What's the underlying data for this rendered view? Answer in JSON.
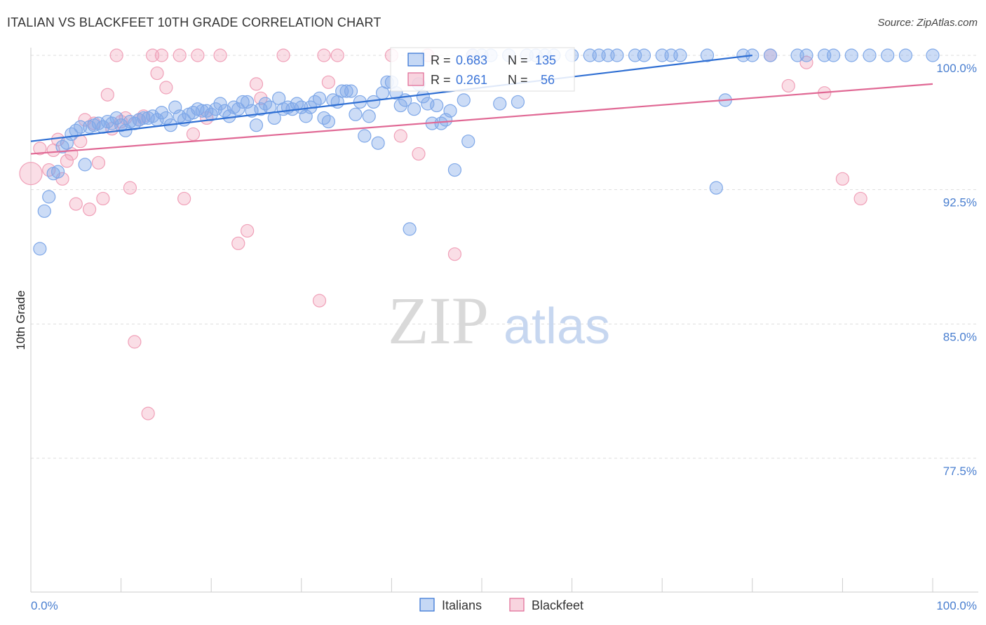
{
  "header": {
    "title": "ITALIAN VS BLACKFEET 10TH GRADE CORRELATION CHART",
    "source": "Source: ZipAtlas.com"
  },
  "watermark": {
    "zip": "ZIP",
    "atlas": "atlas"
  },
  "colors": {
    "italians": "#7fa8e8",
    "italians_line": "#2f6fd3",
    "blackfeet": "#f0a0b8",
    "blackfeet_line": "#e06894",
    "tick": "#4a7fd0",
    "grid": "#dddddd"
  },
  "stats": {
    "italians": {
      "r_label": "R =",
      "r": "0.683",
      "n_label": "N =",
      "n": "135"
    },
    "blackfeet": {
      "r_label": "R =",
      "r": "0.261",
      "n_label": "N =",
      "n": "56"
    }
  },
  "chart_data": {
    "type": "scatter",
    "title": "ITALIAN VS BLACKFEET 10TH GRADE CORRELATION CHART",
    "xlabel": "",
    "ylabel": "10th Grade",
    "xlim": [
      0,
      100
    ],
    "ylim": [
      70.0,
      101.5
    ],
    "x_tick_labels": [
      "0.0%",
      "100.0%"
    ],
    "y_ticks": [
      77.5,
      85.0,
      92.5,
      100.0
    ],
    "y_tick_labels": [
      "77.5%",
      "85.0%",
      "92.5%",
      "100.0%"
    ],
    "grid": true,
    "legend_position": "bottom-center",
    "series": [
      {
        "name": "Italians",
        "trend": {
          "x": [
            0,
            80
          ],
          "y": [
            95.2,
            100.0
          ]
        },
        "points": [
          [
            1,
            89.2
          ],
          [
            1.5,
            91.3
          ],
          [
            2,
            92.1
          ],
          [
            2.5,
            93.4
          ],
          [
            3,
            93.5
          ],
          [
            3.5,
            94.9
          ],
          [
            4,
            95.1
          ],
          [
            4.5,
            95.6
          ],
          [
            5,
            95.8
          ],
          [
            5.5,
            96.0
          ],
          [
            6,
            93.9
          ],
          [
            6.5,
            96.0
          ],
          [
            7,
            96.1
          ],
          [
            7.5,
            96.2
          ],
          [
            8,
            96.0
          ],
          [
            8.5,
            96.3
          ],
          [
            9,
            96.2
          ],
          [
            9.5,
            96.5
          ],
          [
            10,
            96.1
          ],
          [
            10.5,
            95.8
          ],
          [
            11,
            96.3
          ],
          [
            11.5,
            96.2
          ],
          [
            12,
            96.4
          ],
          [
            12.5,
            96.5
          ],
          [
            13,
            96.5
          ],
          [
            13.5,
            96.6
          ],
          [
            14,
            96.4
          ],
          [
            14.5,
            96.8
          ],
          [
            15,
            96.5
          ],
          [
            15.5,
            96.1
          ],
          [
            16,
            97.1
          ],
          [
            16.5,
            96.6
          ],
          [
            17,
            96.4
          ],
          [
            17.5,
            96.7
          ],
          [
            18,
            96.8
          ],
          [
            18.5,
            97.0
          ],
          [
            19,
            96.9
          ],
          [
            19.5,
            96.9
          ],
          [
            20,
            96.7
          ],
          [
            20.5,
            97.0
          ],
          [
            21,
            97.3
          ],
          [
            21.5,
            96.9
          ],
          [
            22,
            96.6
          ],
          [
            22.5,
            97.1
          ],
          [
            23,
            97.0
          ],
          [
            23.5,
            97.4
          ],
          [
            24,
            97.4
          ],
          [
            24.5,
            96.9
          ],
          [
            25,
            96.1
          ],
          [
            25.5,
            97.0
          ],
          [
            26,
            97.3
          ],
          [
            26.5,
            97.1
          ],
          [
            27,
            96.5
          ],
          [
            27.5,
            97.6
          ],
          [
            28,
            97.0
          ],
          [
            28.5,
            97.1
          ],
          [
            29,
            97.0
          ],
          [
            29.5,
            97.3
          ],
          [
            30,
            97.1
          ],
          [
            30.5,
            96.6
          ],
          [
            31,
            97.1
          ],
          [
            31.5,
            97.4
          ],
          [
            32,
            97.6
          ],
          [
            32.5,
            96.5
          ],
          [
            33,
            96.3
          ],
          [
            33.5,
            97.5
          ],
          [
            34,
            97.4
          ],
          [
            34.5,
            98.0
          ],
          [
            35,
            98.0
          ],
          [
            35.5,
            98.0
          ],
          [
            36,
            96.7
          ],
          [
            36.5,
            97.4
          ],
          [
            37,
            95.5
          ],
          [
            37.5,
            96.6
          ],
          [
            38,
            97.4
          ],
          [
            38.5,
            95.1
          ],
          [
            39,
            97.9
          ],
          [
            39.5,
            98.5
          ],
          [
            40,
            98.5
          ],
          [
            40.5,
            97.9
          ],
          [
            41,
            97.2
          ],
          [
            41.5,
            97.5
          ],
          [
            42,
            90.3
          ],
          [
            42.5,
            97.0
          ],
          [
            43,
            98.4
          ],
          [
            43.5,
            97.7
          ],
          [
            44,
            97.3
          ],
          [
            44.5,
            96.2
          ],
          [
            45,
            97.2
          ],
          [
            45.5,
            96.2
          ],
          [
            46,
            96.4
          ],
          [
            46.5,
            96.9
          ],
          [
            47,
            93.6
          ],
          [
            48,
            97.5
          ],
          [
            48.5,
            95.2
          ],
          [
            49,
            100.0
          ],
          [
            50,
            100.0
          ],
          [
            51,
            100.0
          ],
          [
            52,
            97.3
          ],
          [
            53,
            100.0
          ],
          [
            54,
            97.4
          ],
          [
            55,
            100.0
          ],
          [
            56,
            100.0
          ],
          [
            57,
            100.0
          ],
          [
            58,
            100.0
          ],
          [
            60,
            100.0
          ],
          [
            62,
            100.0
          ],
          [
            63,
            100.0
          ],
          [
            64,
            100.0
          ],
          [
            65,
            100.0
          ],
          [
            67,
            100.0
          ],
          [
            68,
            100.0
          ],
          [
            70,
            100.0
          ],
          [
            71,
            100.0
          ],
          [
            72,
            100.0
          ],
          [
            75,
            100.0
          ],
          [
            76,
            92.6
          ],
          [
            77,
            97.5
          ],
          [
            79,
            100.0
          ],
          [
            80,
            100.0
          ],
          [
            82,
            100.0
          ],
          [
            85,
            100.0
          ],
          [
            86,
            100.0
          ],
          [
            88,
            100.0
          ],
          [
            89,
            100.0
          ],
          [
            91,
            100.0
          ],
          [
            93,
            100.0
          ],
          [
            95,
            100.0
          ],
          [
            97,
            100.0
          ],
          [
            100,
            100.0
          ]
        ]
      },
      {
        "name": "Blackfeet",
        "trend": {
          "x": [
            0,
            100
          ],
          "y": [
            94.5,
            98.4
          ]
        },
        "points": [
          [
            0,
            93.4
          ],
          [
            1,
            94.8
          ],
          [
            2,
            93.6
          ],
          [
            2.5,
            94.7
          ],
          [
            3,
            95.3
          ],
          [
            3.5,
            93.1
          ],
          [
            4,
            94.1
          ],
          [
            4.5,
            94.5
          ],
          [
            5,
            91.7
          ],
          [
            5.5,
            95.2
          ],
          [
            6,
            96.4
          ],
          [
            6.5,
            91.4
          ],
          [
            7,
            96.2
          ],
          [
            7.5,
            94.0
          ],
          [
            8,
            92.0
          ],
          [
            8.5,
            97.8
          ],
          [
            9,
            95.9
          ],
          [
            9.5,
            100.0
          ],
          [
            10,
            96.3
          ],
          [
            10.5,
            96.5
          ],
          [
            11,
            92.6
          ],
          [
            11.5,
            84.0
          ],
          [
            12,
            96.4
          ],
          [
            12.5,
            96.6
          ],
          [
            13,
            80.0
          ],
          [
            13.5,
            100.0
          ],
          [
            14,
            99.0
          ],
          [
            14.5,
            100.0
          ],
          [
            15,
            98.2
          ],
          [
            16.5,
            100.0
          ],
          [
            17,
            92.0
          ],
          [
            18,
            95.6
          ],
          [
            18.5,
            100.0
          ],
          [
            19.5,
            96.5
          ],
          [
            21,
            100.0
          ],
          [
            23,
            89.5
          ],
          [
            24,
            90.2
          ],
          [
            25,
            98.4
          ],
          [
            25.5,
            97.6
          ],
          [
            28,
            100.0
          ],
          [
            32,
            86.3
          ],
          [
            32.5,
            100.0
          ],
          [
            33,
            98.5
          ],
          [
            34,
            100.0
          ],
          [
            40,
            100.0
          ],
          [
            41,
            95.5
          ],
          [
            43,
            94.5
          ],
          [
            44,
            100.0
          ],
          [
            47,
            88.9
          ],
          [
            49,
            100.0
          ],
          [
            82,
            100.0
          ],
          [
            84,
            98.3
          ],
          [
            86,
            99.6
          ],
          [
            88,
            97.9
          ],
          [
            90,
            93.1
          ],
          [
            92,
            92.0
          ]
        ]
      }
    ]
  }
}
